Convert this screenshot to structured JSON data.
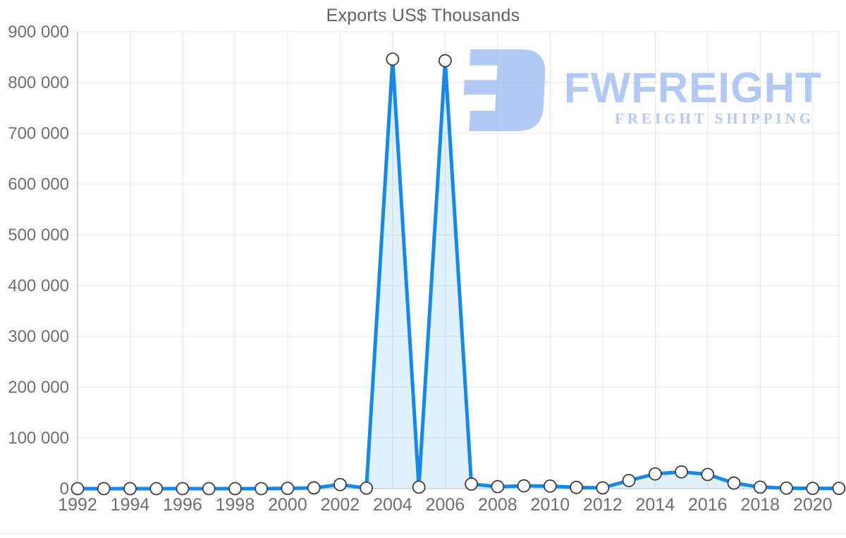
{
  "title": "Exports US$ Thousands",
  "chart_data": {
    "type": "area",
    "title": "Exports US$ Thousands",
    "xlabel": "",
    "ylabel": "",
    "x": [
      1992,
      1993,
      1994,
      1995,
      1996,
      1997,
      1998,
      1999,
      2000,
      2001,
      2002,
      2003,
      2004,
      2005,
      2006,
      2007,
      2008,
      2009,
      2010,
      2011,
      2012,
      2013,
      2014,
      2015,
      2016,
      2017,
      2018,
      2019,
      2020,
      2021
    ],
    "series": [
      {
        "name": "Exports US$ Thousands",
        "values": [
          0,
          0,
          0,
          0,
          0,
          0,
          0,
          0,
          500,
          1500,
          8000,
          1000,
          846000,
          3000,
          843000,
          9000,
          4000,
          5500,
          5000,
          2500,
          1500,
          16000,
          29000,
          33000,
          28000,
          11000,
          3000,
          1000,
          500,
          500
        ]
      }
    ],
    "x_tick_labels": [
      "1992",
      "1994",
      "1996",
      "1998",
      "2000",
      "2002",
      "2004",
      "2006",
      "2008",
      "2010",
      "2012",
      "2014",
      "2016",
      "2018",
      "2020"
    ],
    "y_ticks": [
      0,
      100000,
      200000,
      300000,
      400000,
      500000,
      600000,
      700000,
      800000,
      900000
    ],
    "y_tick_labels": [
      "0",
      "100 000",
      "200 000",
      "300 000",
      "400 000",
      "500 000",
      "600 000",
      "700 000",
      "800 000",
      "900 000"
    ],
    "ylim": [
      0,
      900000
    ],
    "xlim": [
      1992,
      2021
    ],
    "grid": true,
    "legend_position": "none",
    "marker": "circle",
    "colors": {
      "line": "#1389ee",
      "area_fill": "rgba(19,137,238,0.13)",
      "marker_fill": "#ffffff",
      "marker_stroke": "#3d3d3d",
      "gridline": "#e5e5e5",
      "axis_line": "#c2c2c2",
      "tick_label": "#6f6f6f",
      "title": "#5f6368"
    }
  },
  "watermark": {
    "brand": "FWFREIGHT",
    "tagline": "FREIGHT SHIPPING",
    "color": "#9dbbf1",
    "icon": "fwfreight-logo-icon"
  }
}
